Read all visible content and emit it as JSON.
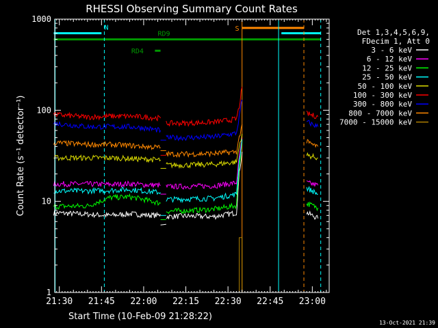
{
  "title": "RHESSI Observing Summary Count Rates",
  "footer_date": "13-Oct-2021 21:39",
  "chart_data": {
    "type": "line",
    "title": "RHESSI Observing Summary Count Rates",
    "xlabel": "Start Time (10-Feb-09 21:28:22)",
    "ylabel": "Count Rate (s⁻¹ detector⁻¹)",
    "y_scale": "log",
    "ylim": [
      1,
      1000
    ],
    "y_ticks": [
      1,
      10,
      100,
      1000
    ],
    "y_tick_labels": [
      "1",
      "10",
      "100",
      "1000"
    ],
    "x_ticks": [
      "21:30",
      "21:45",
      "22:00",
      "22:15",
      "22:30",
      "22:45",
      "23:00"
    ],
    "x_range": [
      "21:28:22",
      "23:06:00"
    ],
    "legend_header": [
      "Det 1,3,4,5,6,9,",
      "FDecim 1, Att 0"
    ],
    "legend_position": "right",
    "series": [
      {
        "name": "3 - 6 keV",
        "color": "#ffffff",
        "segments": [
          {
            "x": [
              "21:28",
              "21:40",
              "21:48",
              "21:55",
              "22:00",
              "22:05",
              "22:06"
            ],
            "y": [
              7.5,
              7.2,
              7.0,
              7.3,
              7.1,
              7.0,
              7.2
            ]
          },
          {
            "x": [
              "22:06",
              "22:08"
            ],
            "y": [
              5.5,
              5.6
            ]
          },
          {
            "x": [
              "22:08",
              "22:15",
              "22:25",
              "22:33",
              "22:34",
              "22:35"
            ],
            "y": [
              6.8,
              6.9,
              6.8,
              7.5,
              20,
              35
            ]
          },
          {
            "x": [
              "22:58",
              "23:00",
              "23:02"
            ],
            "y": [
              7.5,
              7.0,
              6.5
            ]
          }
        ]
      },
      {
        "name": "6 - 12 keV",
        "color": "#ff00ff",
        "segments": [
          {
            "x": [
              "21:28",
              "21:40",
              "21:48",
              "21:55",
              "22:00",
              "22:06"
            ],
            "y": [
              15.5,
              15.5,
              15.3,
              15.6,
              15.2,
              15.0
            ]
          },
          {
            "x": [
              "22:06",
              "22:08"
            ],
            "y": [
              12,
              12
            ]
          },
          {
            "x": [
              "22:08",
              "22:15",
              "22:25",
              "22:33",
              "22:34",
              "22:35"
            ],
            "y": [
              14.5,
              14.6,
              14.8,
              16,
              30,
              50
            ]
          },
          {
            "x": [
              "22:58",
              "23:00",
              "23:02"
            ],
            "y": [
              16,
              15.5,
              15
            ]
          }
        ]
      },
      {
        "name": "12 - 25 keV",
        "color": "#00ff00",
        "segments": [
          {
            "x": [
              "21:28",
              "21:40",
              "21:48",
              "21:55",
              "22:00",
              "22:06"
            ],
            "y": [
              8.8,
              8.9,
              11,
              11.2,
              10.5,
              9.5
            ]
          },
          {
            "x": [
              "22:06",
              "22:08"
            ],
            "y": [
              6.3,
              6.3
            ]
          },
          {
            "x": [
              "22:08",
              "22:15",
              "22:25",
              "22:33",
              "22:34",
              "22:35"
            ],
            "y": [
              7.8,
              7.9,
              8.2,
              9,
              25,
              45
            ]
          },
          {
            "x": [
              "22:58",
              "23:00",
              "23:02"
            ],
            "y": [
              9.5,
              9.0,
              8.5
            ]
          }
        ]
      },
      {
        "name": "25 - 50 keV",
        "color": "#00ffff",
        "segments": [
          {
            "x": [
              "21:28",
              "21:40",
              "21:48",
              "21:55",
              "22:00",
              "22:06"
            ],
            "y": [
              13,
              13,
              13.2,
              13.5,
              13,
              12.5
            ]
          },
          {
            "x": [
              "22:06",
              "22:08"
            ],
            "y": [
              7,
              7
            ]
          },
          {
            "x": [
              "22:08",
              "22:15",
              "22:25",
              "22:33",
              "22:34",
              "22:35"
            ],
            "y": [
              10.5,
              10.6,
              10.8,
              12,
              28,
              48
            ]
          },
          {
            "x": [
              "22:58",
              "23:00",
              "23:02"
            ],
            "y": [
              14,
              13,
              12
            ]
          }
        ]
      },
      {
        "name": "50 - 100 keV",
        "color": "#dddd00",
        "segments": [
          {
            "x": [
              "21:28",
              "21:40",
              "21:48",
              "21:55",
              "22:00",
              "22:06"
            ],
            "y": [
              30,
              30,
              30,
              29.5,
              29,
              28.5
            ]
          },
          {
            "x": [
              "22:06",
              "22:08"
            ],
            "y": [
              23,
              23
            ]
          },
          {
            "x": [
              "22:08",
              "22:15",
              "22:25",
              "22:33",
              "22:34",
              "22:35"
            ],
            "y": [
              25,
              25,
              25.5,
              27,
              40,
              55
            ]
          },
          {
            "x": [
              "22:58",
              "23:00",
              "23:02"
            ],
            "y": [
              32,
              31,
              30
            ]
          }
        ]
      },
      {
        "name": "100 - 300 keV",
        "color": "#ff0000",
        "segments": [
          {
            "x": [
              "21:28",
              "21:40",
              "21:48",
              "21:55",
              "22:00",
              "22:06"
            ],
            "y": [
              90,
              84,
              86,
              86,
              84,
              82
            ]
          },
          {
            "x": [
              "22:06",
              "22:08"
            ],
            "y": [
              32,
              32
            ]
          },
          {
            "x": [
              "22:08",
              "22:15",
              "22:25",
              "22:33",
              "22:34",
              "22:35"
            ],
            "y": [
              72,
              72,
              74,
              80,
              110,
              180
            ]
          },
          {
            "x": [
              "22:58",
              "23:00",
              "23:02"
            ],
            "y": [
              92,
              88,
              85
            ]
          }
        ]
      },
      {
        "name": "300 - 800 keV",
        "color": "#0000ff",
        "segments": [
          {
            "x": [
              "21:28",
              "21:40",
              "21:48",
              "21:55",
              "22:00",
              "22:06"
            ],
            "y": [
              72,
              66,
              66,
              66,
              64,
              60
            ]
          },
          {
            "x": [
              "22:06",
              "22:08"
            ],
            "y": [
              47,
              47
            ]
          },
          {
            "x": [
              "22:08",
              "22:15",
              "22:25",
              "22:33",
              "22:34",
              "22:35"
            ],
            "y": [
              50,
              50,
              51,
              56,
              85,
              130
            ]
          },
          {
            "x": [
              "22:58",
              "23:00",
              "23:02"
            ],
            "y": [
              75,
              70,
              66
            ]
          }
        ]
      },
      {
        "name": "800 - 7000 keV",
        "color": "#ff8800",
        "segments": [
          {
            "x": [
              "21:28",
              "21:40",
              "21:48",
              "21:55",
              "22:00",
              "22:06"
            ],
            "y": [
              44,
              42,
              42,
              41,
              40,
              39
            ]
          },
          {
            "x": [
              "22:06",
              "22:08"
            ],
            "y": [
              36,
              36
            ]
          },
          {
            "x": [
              "22:08",
              "22:15",
              "22:25",
              "22:33",
              "22:34",
              "22:35"
            ],
            "y": [
              33,
              33,
              33.5,
              35,
              50,
              70
            ]
          },
          {
            "x": [
              "22:58",
              "23:00",
              "23:02"
            ],
            "y": [
              45,
              42,
              40
            ]
          }
        ]
      },
      {
        "name": "7000 - 15000 keV",
        "color": "#b08000",
        "segments": [
          {
            "x": [
              "22:34",
              "22:34",
              "22:35",
              "22:35"
            ],
            "y": [
              1,
              4,
              4,
              1
            ]
          }
        ]
      }
    ],
    "flags": [
      {
        "label": "N",
        "color": "#00ffff",
        "y": 700,
        "x": [
          "21:28",
          "21:45"
        ],
        "label_x": "21:46"
      },
      {
        "label": "N",
        "color": "#00ffff",
        "y": 700,
        "x": [
          "22:49",
          "23:03"
        ],
        "label_x": ""
      },
      {
        "label": "S",
        "color": "#ff8800",
        "y": 800,
        "x": [
          "22:35",
          "22:57"
        ],
        "label_x": "22:34"
      },
      {
        "label": "RD9",
        "color": "#009900",
        "y": 600,
        "x": [
          "21:28",
          "23:03"
        ],
        "label_x": "22:05"
      },
      {
        "label": "RD4",
        "color": "#009900",
        "y": 450,
        "x": [
          "22:04",
          "22:06"
        ],
        "label_x": "22:00"
      }
    ],
    "vertical_lines": [
      {
        "x": "21:28:30",
        "color": "#00ffff",
        "style": "solid"
      },
      {
        "x": "21:46",
        "color": "#00ffff",
        "style": "dashed"
      },
      {
        "x": "22:35",
        "color": "#ff8800",
        "style": "solid"
      },
      {
        "x": "22:48",
        "color": "#00ffff",
        "style": "solid"
      },
      {
        "x": "22:57",
        "color": "#ff8800",
        "style": "dashed"
      },
      {
        "x": "23:03",
        "color": "#00ffff",
        "style": "dashed"
      }
    ]
  }
}
